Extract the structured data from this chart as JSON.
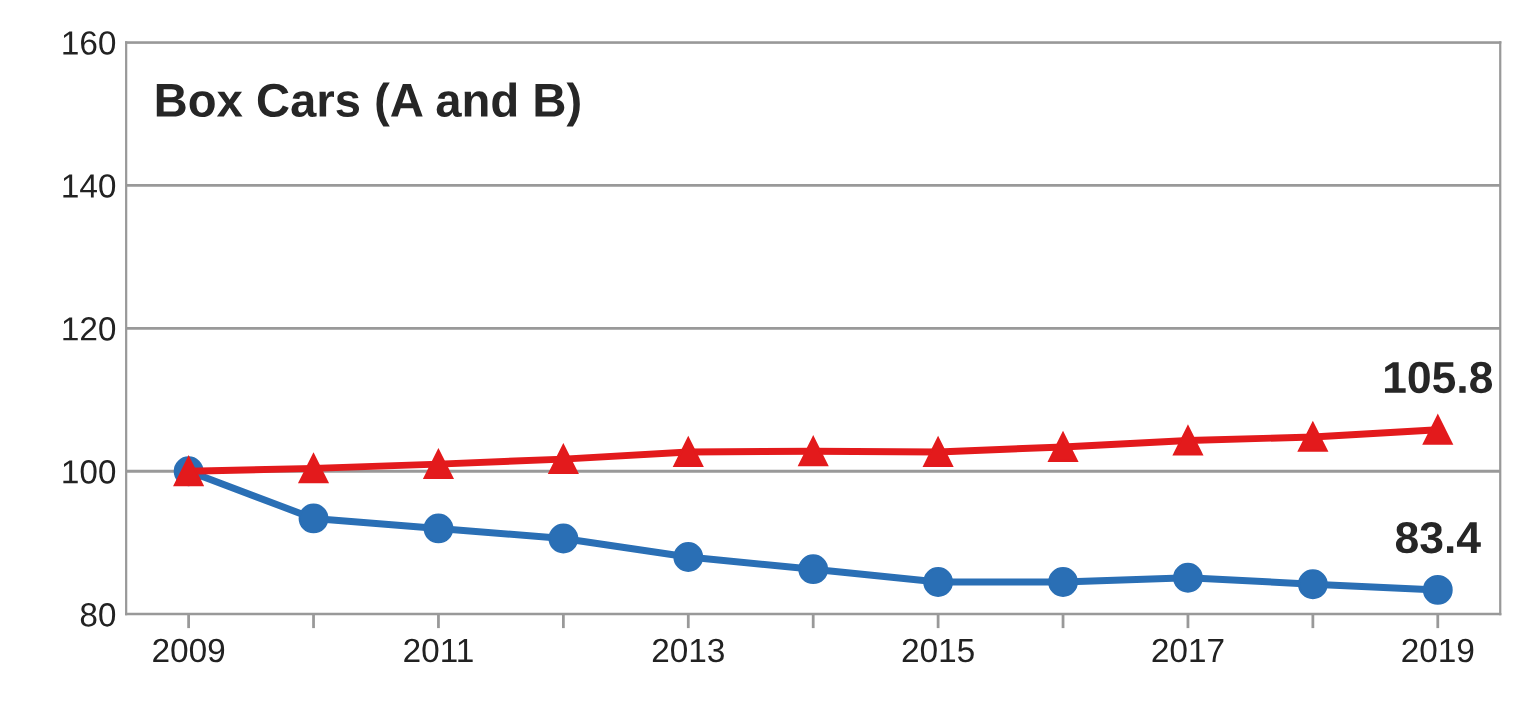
{
  "chart_data": {
    "type": "line",
    "title": "Box Cars (A and B)",
    "x": [
      2009,
      2010,
      2011,
      2012,
      2013,
      2014,
      2015,
      2016,
      2017,
      2018,
      2019
    ],
    "series": [
      {
        "color": "#e31a1c",
        "marker": "triangle",
        "values": [
          100,
          100.4,
          101.0,
          101.7,
          102.7,
          102.8,
          102.7,
          103.4,
          104.3,
          104.8,
          105.8
        ],
        "value_labels": [
          null,
          null,
          null,
          null,
          null,
          null,
          null,
          null,
          null,
          null,
          "105.8"
        ]
      },
      {
        "color": "#2a6fb5",
        "marker": "circle",
        "values": [
          100,
          93.4,
          92.0,
          90.6,
          88.0,
          86.3,
          84.5,
          84.5,
          85.1,
          84.2,
          83.4
        ],
        "value_labels": [
          null,
          null,
          null,
          null,
          null,
          null,
          null,
          null,
          null,
          null,
          "83.4"
        ]
      }
    ],
    "xlim": [
      2008.5,
      2019.5
    ],
    "xticks": [
      2009,
      {
        "value": 2010,
        "label": null
      },
      2011,
      {
        "value": 2012,
        "label": null
      },
      2013,
      {
        "value": 2014,
        "label": null
      },
      2015,
      {
        "value": 2016,
        "label": null
      },
      2017,
      {
        "value": 2018,
        "label": null
      },
      2019
    ],
    "ylim": [
      80,
      160
    ],
    "yticks": [
      80,
      100,
      120,
      140,
      160
    ],
    "grid": "y",
    "legend": false
  }
}
